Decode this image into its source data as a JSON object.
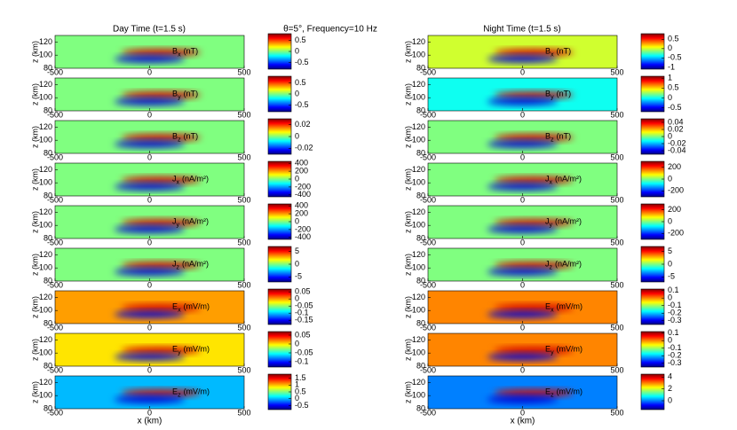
{
  "titles": {
    "day": "Day Time (t=1.5 s)",
    "middle": "θ=5°, Frequency=10 Hz",
    "night": "Night Time (t=1.5 s)"
  },
  "axes": {
    "xlabel": "x (km)",
    "ylabel": "z (km)",
    "xlim": [
      -500,
      500
    ],
    "xticks": [
      -500,
      0,
      500
    ],
    "ylim": [
      80,
      130
    ],
    "yticks": [
      80,
      100,
      120
    ]
  },
  "chart_data": [
    {
      "type": "heatmap",
      "label": {
        "symbol": "B",
        "sub": "x",
        "unit": "(nT)"
      },
      "clim": [
        -0.8,
        0.8
      ],
      "cticks": [
        0.5,
        0,
        -0.5
      ]
    },
    {
      "type": "heatmap",
      "label": {
        "symbol": "B",
        "sub": "y",
        "unit": "(nT)"
      },
      "clim": [
        -0.8,
        0.8
      ],
      "cticks": [
        0.5,
        0,
        -0.5
      ]
    },
    {
      "type": "heatmap",
      "label": {
        "symbol": "B",
        "sub": "z",
        "unit": "(nT)"
      },
      "clim": [
        -0.03,
        0.03
      ],
      "cticks": [
        0.02,
        0,
        -0.02
      ]
    },
    {
      "type": "heatmap",
      "label": {
        "symbol": "J",
        "sub": "x",
        "unit": "(nA/m²)"
      },
      "clim": [
        -450,
        450
      ],
      "cticks": [
        400,
        200,
        0,
        -200,
        -400
      ]
    },
    {
      "type": "heatmap",
      "label": {
        "symbol": "J",
        "sub": "y",
        "unit": "(nA/m²)"
      },
      "clim": [
        -450,
        450
      ],
      "cticks": [
        400,
        200,
        0,
        -200,
        -400
      ]
    },
    {
      "type": "heatmap",
      "label": {
        "symbol": "J",
        "sub": "z",
        "unit": "(nA/m²)"
      },
      "clim": [
        -7,
        7
      ],
      "cticks": [
        5,
        0,
        -5
      ]
    },
    {
      "type": "heatmap",
      "label": {
        "symbol": "E",
        "sub": "x",
        "unit": "(mV/m)"
      },
      "clim": [
        -0.18,
        0.07
      ],
      "cticks": [
        0.05,
        0,
        -0.05,
        -0.1,
        -0.15
      ]
    },
    {
      "type": "heatmap",
      "label": {
        "symbol": "E",
        "sub": "y",
        "unit": "(mV/m)"
      },
      "clim": [
        -0.13,
        0.07
      ],
      "cticks": [
        0.05,
        0,
        -0.05,
        -0.1
      ]
    },
    {
      "type": "heatmap",
      "label": {
        "symbol": "E",
        "sub": "z",
        "unit": "(mV/m)"
      },
      "clim": [
        -0.8,
        1.8
      ],
      "cticks": [
        1.5,
        1,
        0.5,
        0,
        -0.5
      ]
    },
    {
      "type": "heatmap",
      "label": {
        "symbol": "B",
        "sub": "x",
        "unit": "(nT)"
      },
      "clim": [
        -1.1,
        0.8
      ],
      "cticks": [
        0.5,
        0,
        -0.5,
        -1
      ]
    },
    {
      "type": "heatmap",
      "label": {
        "symbol": "B",
        "sub": "y",
        "unit": "(nT)"
      },
      "clim": [
        -0.7,
        1.1
      ],
      "cticks": [
        1,
        0.5,
        0,
        -0.5
      ]
    },
    {
      "type": "heatmap",
      "label": {
        "symbol": "B",
        "sub": "z",
        "unit": "(nT)"
      },
      "clim": [
        -0.05,
        0.05
      ],
      "cticks": [
        0.04,
        0.02,
        0,
        -0.02,
        -0.04
      ]
    },
    {
      "type": "heatmap",
      "label": {
        "symbol": "J",
        "sub": "x",
        "unit": "(nA/m²)"
      },
      "clim": [
        -300,
        300
      ],
      "cticks": [
        200,
        0,
        -200
      ]
    },
    {
      "type": "heatmap",
      "label": {
        "symbol": "J",
        "sub": "y",
        "unit": "(nA/m²)"
      },
      "clim": [
        -300,
        300
      ],
      "cticks": [
        200,
        0,
        -200
      ]
    },
    {
      "type": "heatmap",
      "label": {
        "symbol": "J",
        "sub": "z",
        "unit": "(nA/m²)"
      },
      "clim": [
        -7,
        7
      ],
      "cticks": [
        5,
        0,
        -5
      ]
    },
    {
      "type": "heatmap",
      "label": {
        "symbol": "E",
        "sub": "x",
        "unit": "(mV/m)"
      },
      "clim": [
        -0.35,
        0.12
      ],
      "cticks": [
        0.1,
        0,
        -0.1,
        -0.2,
        -0.3
      ]
    },
    {
      "type": "heatmap",
      "label": {
        "symbol": "E",
        "sub": "y",
        "unit": "(mV/m)"
      },
      "clim": [
        -0.35,
        0.12
      ],
      "cticks": [
        0.1,
        0,
        -0.1,
        -0.2,
        -0.3
      ]
    },
    {
      "type": "heatmap",
      "label": {
        "symbol": "E",
        "sub": "z",
        "unit": "(mV/m)"
      },
      "clim": [
        -1.5,
        4.5
      ],
      "cticks": [
        4,
        2,
        0
      ]
    }
  ]
}
